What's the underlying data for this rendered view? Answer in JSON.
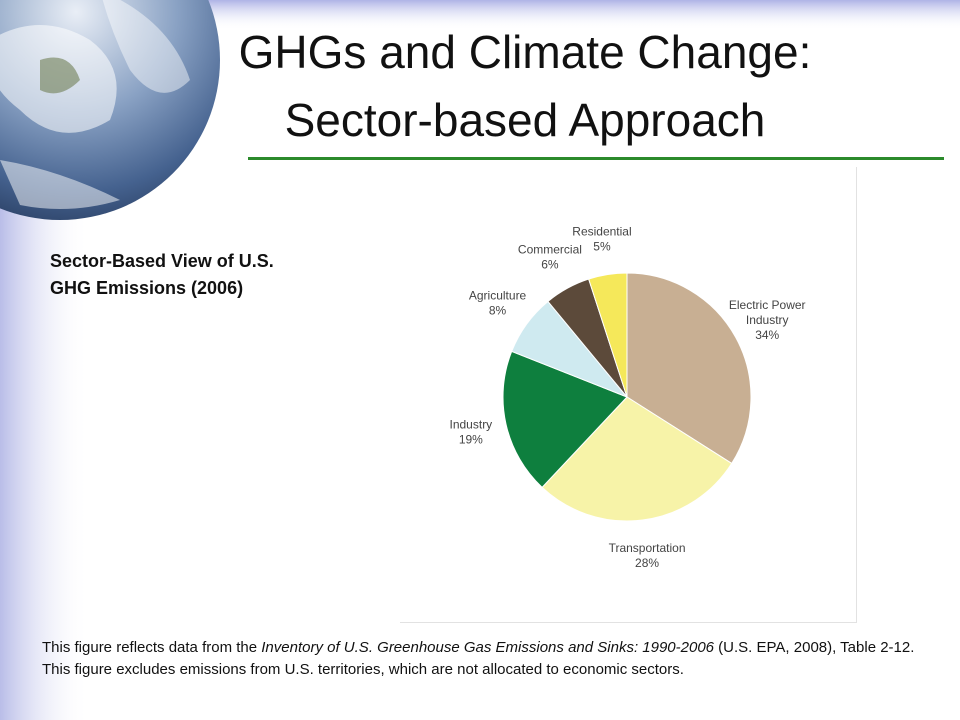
{
  "slide": {
    "title_line1": "GHGs and Climate Change:",
    "title_line2": "Sector-based Approach",
    "chart_heading_line1": "Sector-Based View of U.S.",
    "chart_heading_line2": "GHG Emissions (2006)",
    "footnote_part1": "This figure reflects data from the ",
    "footnote_italic": "Inventory of U.S. Greenhouse Gas Emissions and Sinks: 1990-2006",
    "footnote_part2": " (U.S. EPA, 2008), Table 2-12. This figure excludes emissions from U.S. territories, which are not allocated to economic sectors."
  },
  "chart_data": {
    "type": "pie",
    "title": "Sector-Based View of U.S. GHG Emissions (2006)",
    "slices": [
      {
        "label_lines": [
          "Electric Power",
          "Industry"
        ],
        "value": 34,
        "pct": "34%",
        "color": "#c8af93"
      },
      {
        "label_lines": [
          "Transportation"
        ],
        "value": 28,
        "pct": "28%",
        "color": "#f7f3a8"
      },
      {
        "label_lines": [
          "Industry"
        ],
        "value": 19,
        "pct": "19%",
        "color": "#0e7f3e"
      },
      {
        "label_lines": [
          "Agriculture"
        ],
        "value": 8,
        "pct": "8%",
        "color": "#cfeaf0"
      },
      {
        "label_lines": [
          "Commercial"
        ],
        "value": 6,
        "pct": "6%",
        "color": "#5c4a3a"
      },
      {
        "label_lines": [
          "Residential"
        ],
        "value": 5,
        "pct": "5%",
        "color": "#f5e85a"
      }
    ],
    "start": "12 o'clock",
    "direction": "clockwise"
  }
}
